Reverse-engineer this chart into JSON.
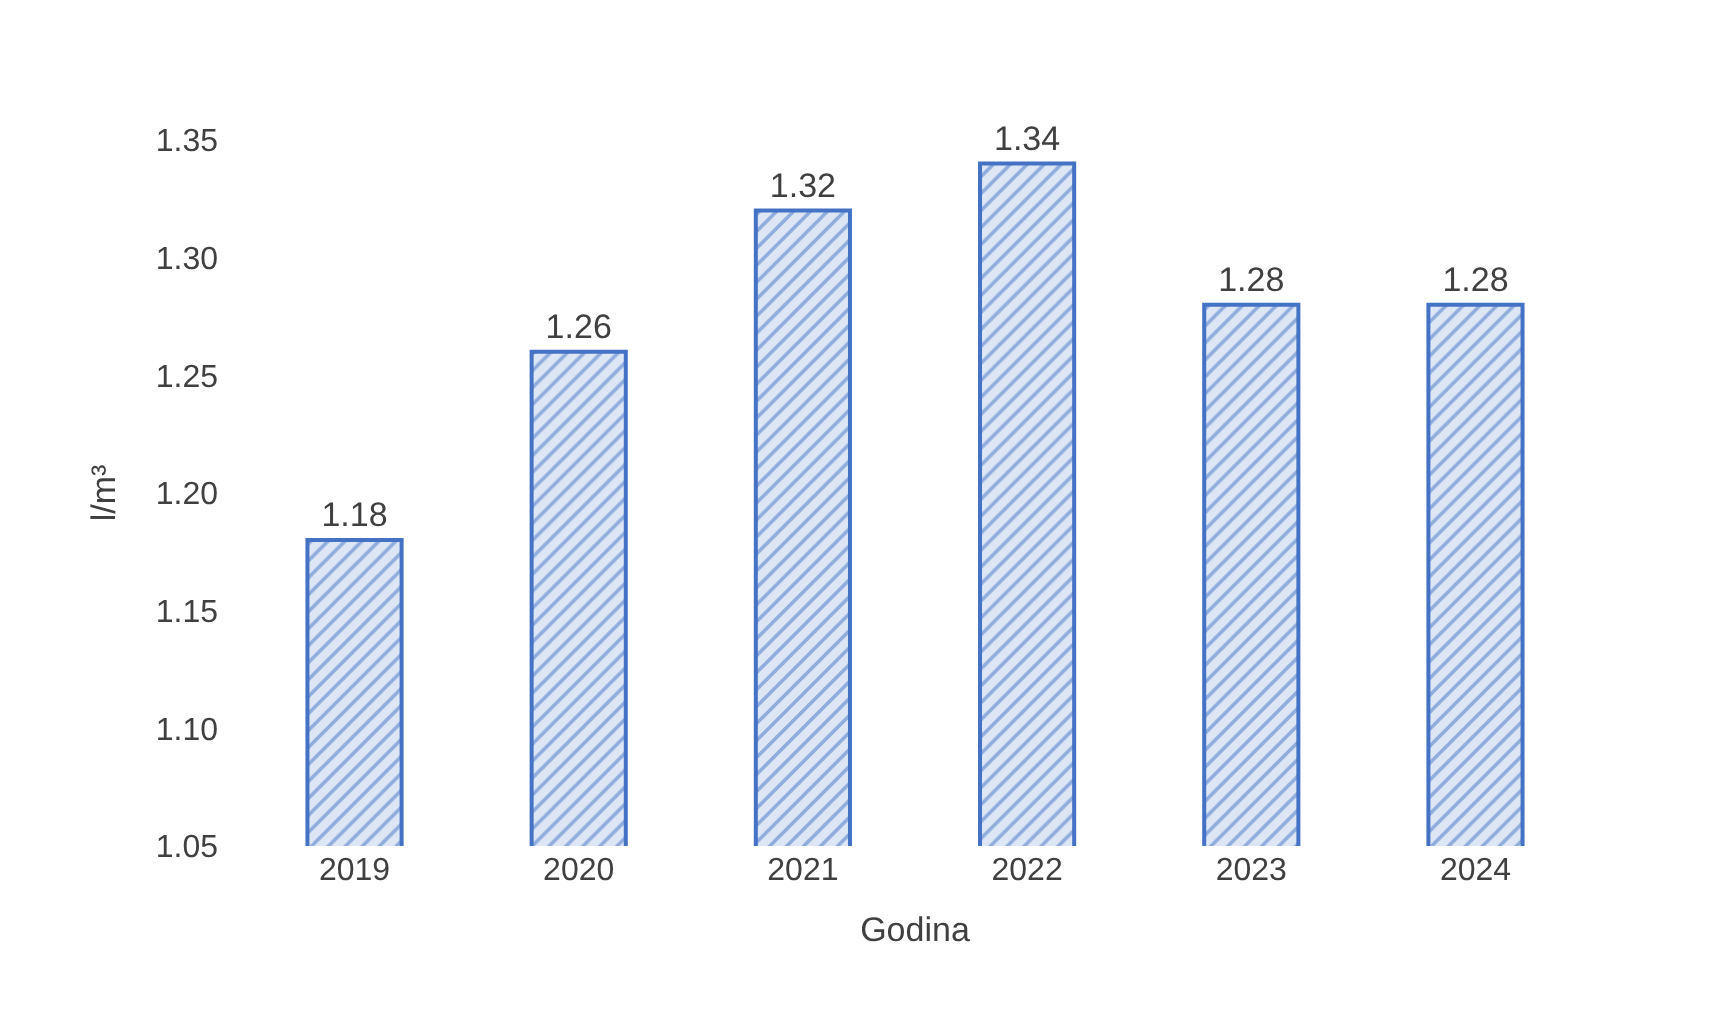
{
  "chart_data": {
    "type": "bar",
    "xlabel": "Godina",
    "ylabel": "l/m³",
    "categories": [
      "2019",
      "2020",
      "2021",
      "2022",
      "2023",
      "2024"
    ],
    "values": [
      1.18,
      1.26,
      1.32,
      1.34,
      1.28,
      1.28
    ],
    "color": "#4472c4",
    "ylim": [
      1.05,
      1.35
    ],
    "yticks": [
      {
        "value": 1.05,
        "label": "1.05"
      },
      {
        "value": 1.1,
        "label": "1.10"
      },
      {
        "value": 1.15,
        "label": "1.15"
      },
      {
        "value": 1.2,
        "label": "1.20"
      },
      {
        "value": 1.25,
        "label": "1.25"
      },
      {
        "value": 1.3,
        "label": "1.30"
      },
      {
        "value": 1.35,
        "label": "1.35"
      }
    ],
    "data_labels": true
  }
}
